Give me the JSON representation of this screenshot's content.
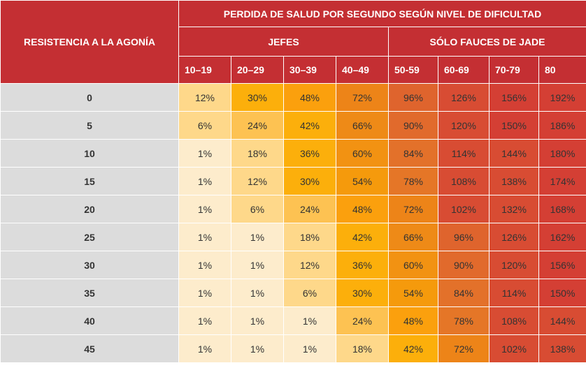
{
  "header": {
    "corner_label": "RESISTENCIA A LA AGONÍA",
    "title": "PERDIDA DE SALUD POR SEGUNDO SEGÚN NIVEL DE DIFICULTAD",
    "groups": {
      "bosses": "JEFES",
      "jade_maw": "SÓLO FAUCES DE JADE"
    },
    "ranges": [
      "10–19",
      "20–29",
      "30–39",
      "40–49",
      "50-59",
      "60-69",
      "70-79",
      "80"
    ]
  },
  "rows": [
    {
      "resistance": "0",
      "values": [
        "12%",
        "30%",
        "48%",
        "72%",
        "96%",
        "126%",
        "156%",
        "192%"
      ]
    },
    {
      "resistance": "5",
      "values": [
        "6%",
        "24%",
        "42%",
        "66%",
        "90%",
        "120%",
        "150%",
        "186%"
      ]
    },
    {
      "resistance": "10",
      "values": [
        "1%",
        "18%",
        "36%",
        "60%",
        "84%",
        "114%",
        "144%",
        "180%"
      ]
    },
    {
      "resistance": "15",
      "values": [
        "1%",
        "12%",
        "30%",
        "54%",
        "78%",
        "108%",
        "138%",
        "174%"
      ]
    },
    {
      "resistance": "20",
      "values": [
        "1%",
        "6%",
        "24%",
        "48%",
        "72%",
        "102%",
        "132%",
        "168%"
      ]
    },
    {
      "resistance": "25",
      "values": [
        "1%",
        "1%",
        "18%",
        "42%",
        "66%",
        "96%",
        "126%",
        "162%"
      ]
    },
    {
      "resistance": "30",
      "values": [
        "1%",
        "1%",
        "12%",
        "36%",
        "60%",
        "90%",
        "120%",
        "156%"
      ]
    },
    {
      "resistance": "35",
      "values": [
        "1%",
        "1%",
        "6%",
        "30%",
        "54%",
        "84%",
        "114%",
        "150%"
      ]
    },
    {
      "resistance": "40",
      "values": [
        "1%",
        "1%",
        "1%",
        "24%",
        "48%",
        "78%",
        "108%",
        "144%"
      ]
    },
    {
      "resistance": "45",
      "values": [
        "1%",
        "1%",
        "1%",
        "18%",
        "42%",
        "72%",
        "102%",
        "138%"
      ]
    }
  ],
  "colors": {
    "header_red": "#c42f33",
    "label_gray": "#dcdcdc",
    "scale": {
      "1": "#fdeccc",
      "6": "#fed88a",
      "12": "#fed88a",
      "18": "#fed88a",
      "24": "#fdc252",
      "30": "#fcaf0b",
      "36": "#fcaf0b",
      "42": "#fcaf0b",
      "48": "#fba00d",
      "54": "#f59a0c",
      "60": "#f29212",
      "66": "#ee8a17",
      "72": "#ed8418",
      "78": "#e57627",
      "84": "#e3712a",
      "90": "#e16a2c",
      "96": "#df642d",
      "hot": "#d84c33",
      "hotter": "#d43f34"
    }
  }
}
